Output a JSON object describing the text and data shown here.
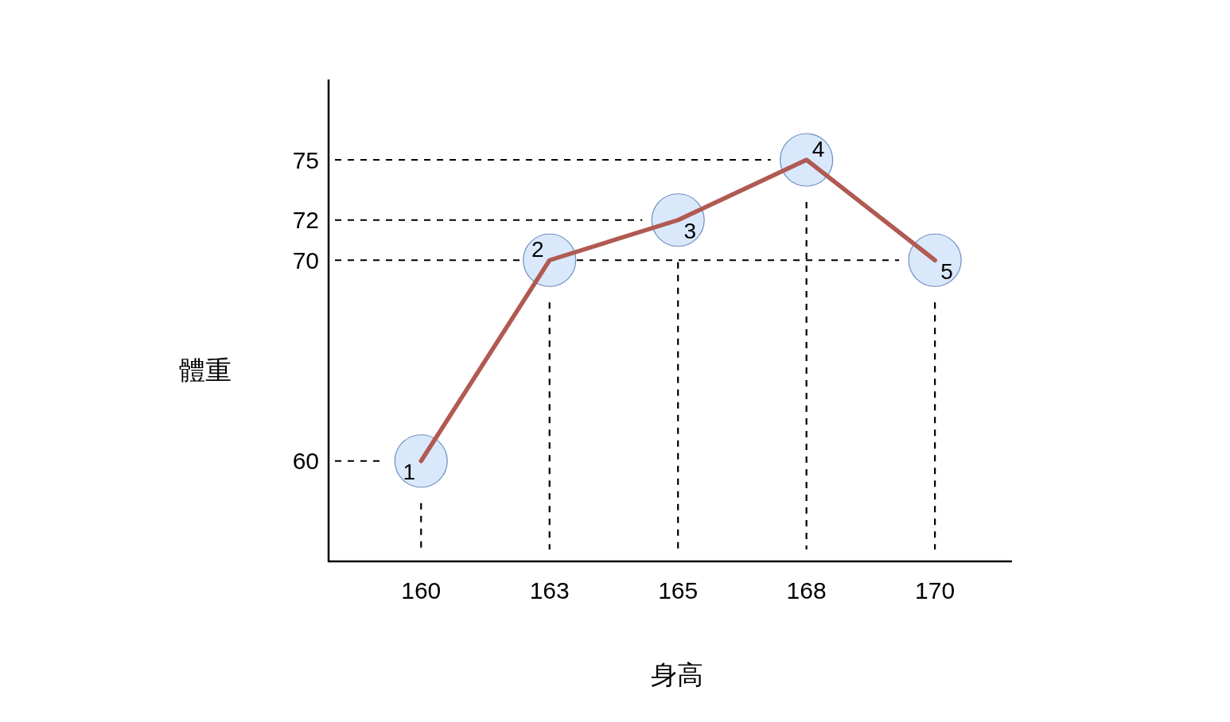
{
  "chart_data": {
    "type": "line",
    "xlabel": "身高",
    "ylabel": "體重",
    "categories": [
      "160",
      "163",
      "165",
      "168",
      "170"
    ],
    "values": [
      60,
      70,
      72,
      75,
      70
    ],
    "color": "#b05a52",
    "ylim": [
      55,
      79
    ],
    "yticks": [
      60,
      70,
      72,
      75
    ],
    "annotations": [
      {
        "text": "1",
        "x": "160",
        "y": 60
      },
      {
        "text": "2",
        "x": "163",
        "y": 70
      },
      {
        "text": "3",
        "x": "165",
        "y": 72
      },
      {
        "text": "4",
        "x": "168",
        "y": 75
      },
      {
        "text": "5",
        "x": "170",
        "y": 70
      }
    ],
    "ref_lines": [
      {
        "axis": "y",
        "value": 75,
        "line_style": "dashed"
      },
      {
        "axis": "y",
        "value": 72,
        "line_style": "dashed"
      },
      {
        "axis": "y",
        "value": 70,
        "line_style": "dashed"
      },
      {
        "axis": "y",
        "value": 60,
        "line_style": "dashed"
      },
      {
        "axis": "x",
        "value": "160",
        "line_style": "dashed"
      },
      {
        "axis": "x",
        "value": "163",
        "line_style": "dashed"
      },
      {
        "axis": "x",
        "value": "165",
        "line_style": "dashed"
      },
      {
        "axis": "x",
        "value": "168",
        "line_style": "dashed"
      },
      {
        "axis": "x",
        "value": "170",
        "line_style": "dashed"
      }
    ]
  }
}
